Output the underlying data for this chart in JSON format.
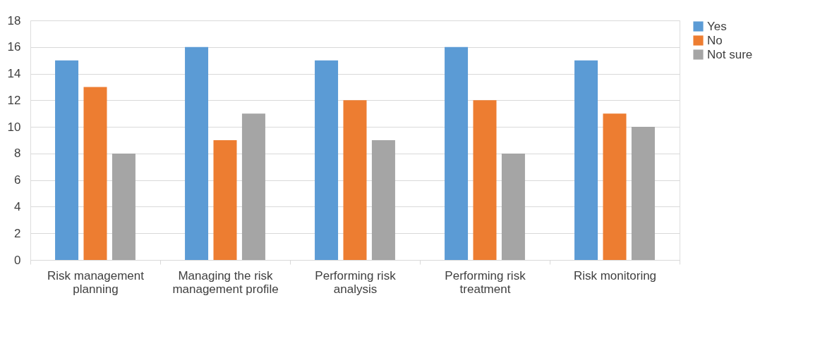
{
  "chart_data": {
    "type": "bar",
    "categories": [
      "Risk management planning",
      "Managing the risk management profile",
      "Performing risk analysis",
      "Performing risk treatment",
      "Risk monitoring"
    ],
    "series": [
      {
        "name": "Yes",
        "color": "#5b9bd5",
        "values": [
          15,
          16,
          15,
          16,
          15
        ]
      },
      {
        "name": "No",
        "color": "#ed7d31",
        "values": [
          13,
          9,
          12,
          12,
          11
        ]
      },
      {
        "name": "Not sure",
        "color": "#a5a5a5",
        "values": [
          8,
          11,
          9,
          8,
          10
        ]
      }
    ],
    "ylim": [
      0,
      18
    ],
    "yticks": [
      0,
      2,
      4,
      6,
      8,
      10,
      12,
      14,
      16,
      18
    ],
    "grid": "y",
    "legend": "right"
  }
}
